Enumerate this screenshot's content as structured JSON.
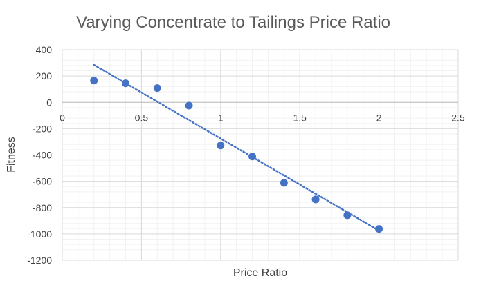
{
  "chart_data": {
    "type": "scatter",
    "title": "Varying Concentrate to Tailings Price Ratio",
    "xlabel": "Price Ratio",
    "ylabel": "Fitness",
    "xlim": [
      0,
      2.5
    ],
    "ylim": [
      -1200,
      400
    ],
    "x_ticks": [
      0,
      0.5,
      1,
      1.5,
      2,
      2.5
    ],
    "x_tick_labels": [
      "0",
      "0.5",
      "1",
      "1.5",
      "2",
      "2.5"
    ],
    "y_ticks": [
      400,
      200,
      0,
      -200,
      -400,
      -600,
      -800,
      -1000,
      -1200
    ],
    "y_tick_labels": [
      "400",
      "200",
      "0",
      "-200",
      "-400",
      "-600",
      "-800",
      "-1000",
      "-1200"
    ],
    "grid": true,
    "minor_grid": true,
    "legend": "none",
    "series": [
      {
        "x": [
          0.2,
          0.4,
          0.6,
          0.8,
          1.0,
          1.2,
          1.4,
          1.6,
          1.8,
          2.0
        ],
        "y": [
          165,
          145,
          108,
          -25,
          -328,
          -412,
          -612,
          -738,
          -858,
          -962
        ],
        "color": "#4472C4",
        "trendline": {
          "type": "linear",
          "style": "dotted",
          "x": [
            0.2,
            2.0
          ],
          "y": [
            285,
            -975
          ]
        }
      }
    ]
  }
}
